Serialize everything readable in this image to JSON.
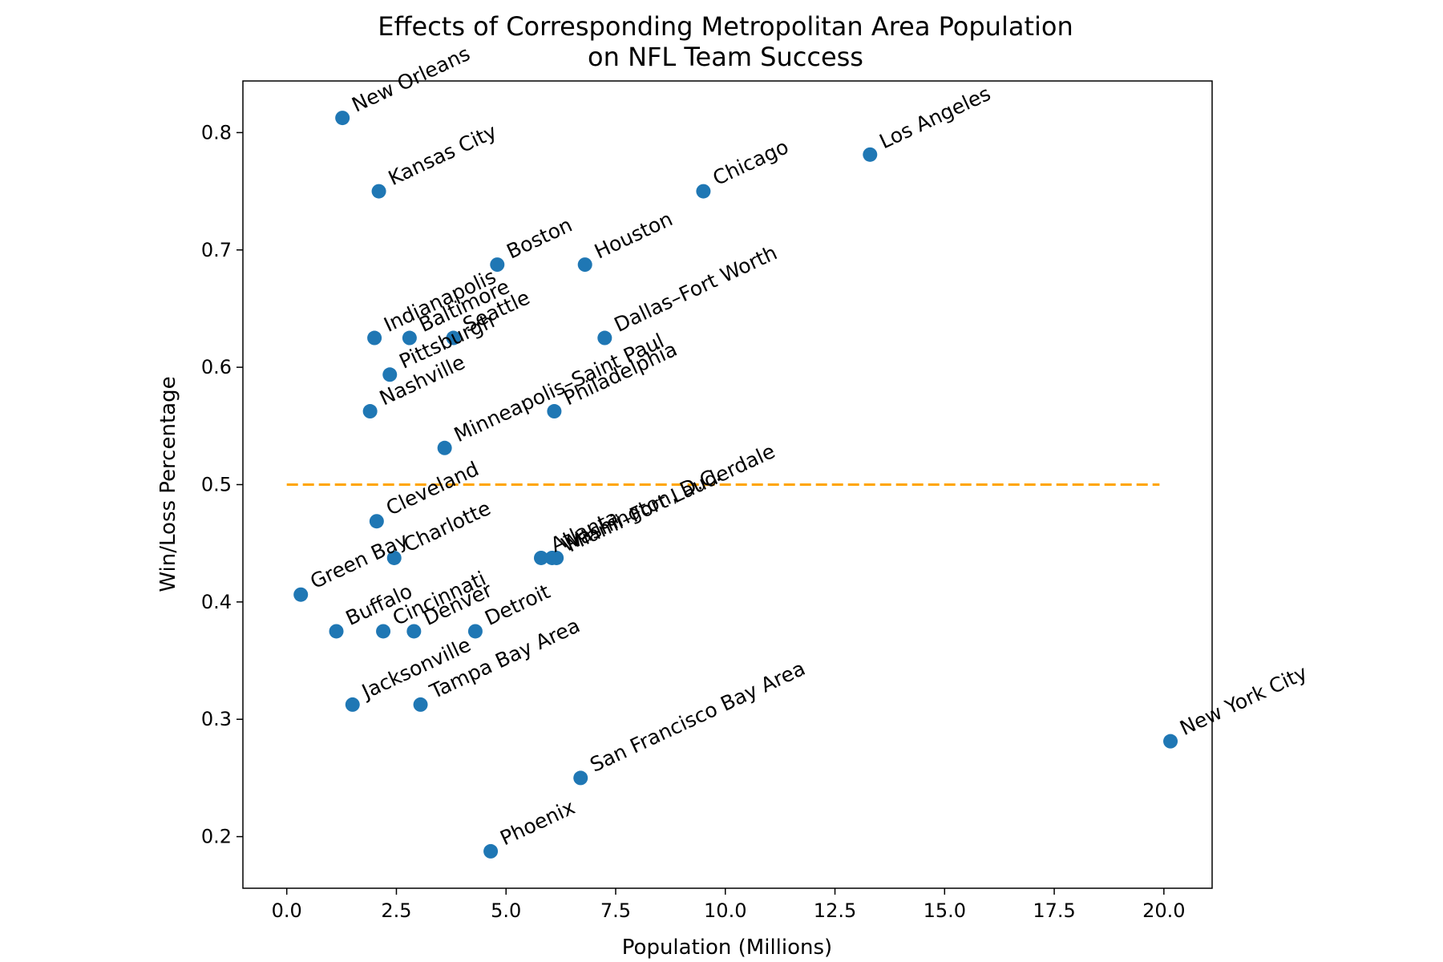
{
  "chart_data": {
    "type": "scatter",
    "title_line1": "Effects of Corresponding Metropolitan Area Population",
    "title_line2": "on NFL Team Success",
    "xlabel": "Population (Millions)",
    "ylabel": "Win/Loss Percentage",
    "xlim": [
      -1.0,
      21.1
    ],
    "ylim": [
      0.156,
      0.844
    ],
    "xticks": [
      0.0,
      2.5,
      5.0,
      7.5,
      10.0,
      12.5,
      15.0,
      17.5,
      20.0
    ],
    "xtick_labels": [
      "0.0",
      "2.5",
      "5.0",
      "7.5",
      "10.0",
      "12.5",
      "15.0",
      "17.5",
      "20.0"
    ],
    "yticks": [
      0.2,
      0.3,
      0.4,
      0.5,
      0.6,
      0.7,
      0.8
    ],
    "ytick_labels": [
      "0.2",
      "0.3",
      "0.4",
      "0.5",
      "0.6",
      "0.7",
      "0.8"
    ],
    "grid": false,
    "marker_color": "#1f77b4",
    "reference_line": {
      "y": 0.5,
      "x_start": 0.0,
      "x_end": 19.9,
      "color": "#ffa500",
      "style": "dashed"
    },
    "points": [
      {
        "label": "New Orleans",
        "x": 1.27,
        "y": 0.8125
      },
      {
        "label": "Kansas City",
        "x": 2.1,
        "y": 0.75
      },
      {
        "label": "Los Angeles",
        "x": 13.3,
        "y": 0.78125
      },
      {
        "label": "Chicago",
        "x": 9.5,
        "y": 0.75
      },
      {
        "label": "Boston",
        "x": 4.8,
        "y": 0.6875
      },
      {
        "label": "Houston",
        "x": 6.8,
        "y": 0.6875
      },
      {
        "label": "Indianapolis",
        "x": 2.0,
        "y": 0.625
      },
      {
        "label": "Baltimore",
        "x": 2.8,
        "y": 0.625
      },
      {
        "label": "Seattle",
        "x": 3.8,
        "y": 0.625
      },
      {
        "label": "Dallas–Fort Worth",
        "x": 7.25,
        "y": 0.625
      },
      {
        "label": "Pittsburgh",
        "x": 2.35,
        "y": 0.59375
      },
      {
        "label": "Nashville",
        "x": 1.9,
        "y": 0.5625
      },
      {
        "label": "Philadelphia",
        "x": 6.1,
        "y": 0.5625
      },
      {
        "label": "Minneapolis–Saint Paul",
        "x": 3.6,
        "y": 0.53125
      },
      {
        "label": "Cleveland",
        "x": 2.05,
        "y": 0.46875
      },
      {
        "label": "Charlotte",
        "x": 2.45,
        "y": 0.4375
      },
      {
        "label": "Atlanta",
        "x": 5.8,
        "y": 0.4375
      },
      {
        "label": "Washington, D.C.",
        "x": 6.05,
        "y": 0.4375
      },
      {
        "label": "Miami–Fort Lauderdale",
        "x": 6.15,
        "y": 0.4375
      },
      {
        "label": "Green Bay",
        "x": 0.32,
        "y": 0.40625
      },
      {
        "label": "Buffalo",
        "x": 1.13,
        "y": 0.375
      },
      {
        "label": "Cincinnati",
        "x": 2.2,
        "y": 0.375
      },
      {
        "label": "Denver",
        "x": 2.9,
        "y": 0.375
      },
      {
        "label": "Detroit",
        "x": 4.3,
        "y": 0.375
      },
      {
        "label": "Jacksonville",
        "x": 1.5,
        "y": 0.3125
      },
      {
        "label": "Tampa Bay Area",
        "x": 3.05,
        "y": 0.3125
      },
      {
        "label": "New York City",
        "x": 20.15,
        "y": 0.28125
      },
      {
        "label": "San Francisco Bay Area",
        "x": 6.7,
        "y": 0.25
      },
      {
        "label": "Phoenix",
        "x": 4.65,
        "y": 0.1875
      }
    ]
  }
}
